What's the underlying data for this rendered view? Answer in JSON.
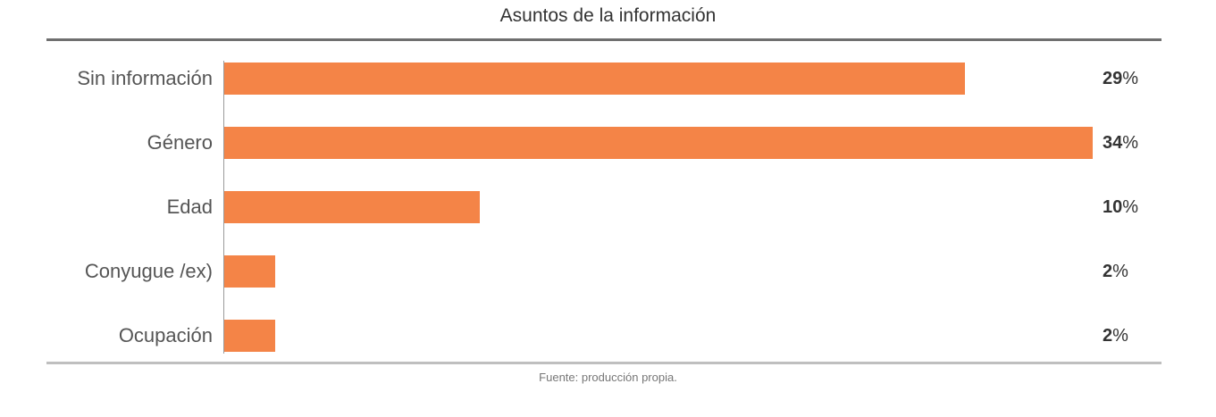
{
  "chart_data": {
    "type": "bar",
    "orientation": "horizontal",
    "title": "Asuntos de la información",
    "categories": [
      "Sin información",
      "Género",
      "Edad",
      "Conyugue /ex)",
      "Ocupación"
    ],
    "values": [
      29,
      34,
      10,
      2,
      2
    ],
    "value_labels": [
      "29",
      "34",
      "10",
      "2",
      "2"
    ],
    "value_suffix": "%",
    "xlim": [
      0,
      34
    ],
    "bar_color": "#f48447",
    "grid": false,
    "source": "Fuente: producción propia."
  }
}
